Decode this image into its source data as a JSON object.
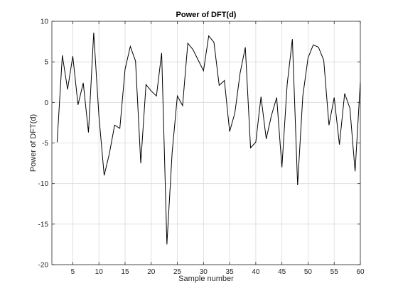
{
  "chart_data": {
    "type": "line",
    "title": "Power of DFT(d)",
    "xlabel": "Sample number",
    "ylabel": "Power of DFT(d)",
    "xlim": [
      1,
      60
    ],
    "ylim": [
      -20,
      10
    ],
    "xticks": [
      5,
      10,
      15,
      20,
      25,
      30,
      35,
      40,
      45,
      50,
      55,
      60
    ],
    "yticks": [
      -20,
      -15,
      -10,
      -5,
      0,
      5,
      10
    ],
    "grid": true,
    "series": [
      {
        "x": [
          2,
          3,
          4,
          5,
          6,
          7,
          8,
          9,
          10,
          11,
          12,
          13,
          14,
          15,
          16,
          17,
          18,
          19,
          20,
          21,
          22,
          23,
          24,
          25,
          26,
          27,
          28,
          29,
          30,
          31,
          32,
          33,
          34,
          35,
          36,
          37,
          38,
          39,
          40,
          41,
          42,
          43,
          44,
          45,
          46,
          47,
          48,
          49,
          50,
          51,
          52,
          53,
          54,
          55,
          56,
          57,
          58,
          59,
          60
        ],
        "values": [
          -4.9,
          5.8,
          1.6,
          5.7,
          -0.3,
          2.4,
          -3.7,
          8.6,
          -1.7,
          -9.0,
          -6.3,
          -2.8,
          -3.2,
          4.1,
          6.9,
          5.1,
          -7.5,
          2.2,
          1.4,
          0.8,
          6.1,
          -17.5,
          -6.2,
          0.8,
          -0.4,
          7.3,
          6.5,
          5.2,
          3.9,
          8.2,
          7.4,
          2.1,
          2.7,
          -3.6,
          -1.3,
          3.6,
          6.8,
          -5.6,
          -4.9,
          0.7,
          -4.5,
          -1.6,
          0.6,
          -8.0,
          2.2,
          7.8,
          -10.2,
          0.8,
          5.5,
          7.1,
          6.8,
          5.2,
          -2.8,
          0.6,
          -5.2,
          1.1,
          -0.7,
          -8.5,
          2.5
        ],
        "color": "#000000"
      }
    ],
    "colors": {
      "axes": "#262626",
      "grid": "#d9d9d9",
      "line": "#000000",
      "background": "#ffffff"
    }
  }
}
